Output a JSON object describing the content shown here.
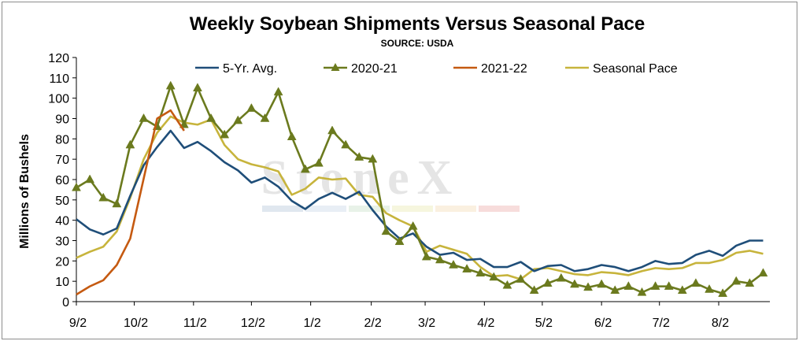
{
  "chart_data": {
    "type": "line",
    "title": "Weekly Soybean Shipments Versus Seasonal Pace",
    "subtitle": "SOURCE: USDA",
    "ylabel": "Millions of Bushels",
    "xlabel": "",
    "ylim": [
      0,
      120
    ],
    "ytick_step": 10,
    "yticks": [
      "0",
      "10",
      "20",
      "30",
      "40",
      "50",
      "60",
      "70",
      "80",
      "90",
      "100",
      "110",
      "120"
    ],
    "grid": false,
    "legend": "top",
    "watermark": "StoneX",
    "x_week_count": 52,
    "xticks": [
      {
        "label": "9/2",
        "week": 0
      },
      {
        "label": "10/2",
        "week": 4.3
      },
      {
        "label": "11/2",
        "week": 8.7
      },
      {
        "label": "12/2",
        "week": 13
      },
      {
        "label": "1/2",
        "week": 17.4
      },
      {
        "label": "2/2",
        "week": 21.9
      },
      {
        "label": "3/2",
        "week": 25.9
      },
      {
        "label": "4/2",
        "week": 30.3
      },
      {
        "label": "5/2",
        "week": 34.6
      },
      {
        "label": "6/2",
        "week": 39
      },
      {
        "label": "7/2",
        "week": 43.3
      },
      {
        "label": "8/2",
        "week": 47.7
      }
    ],
    "series": [
      {
        "name": "5-Yr. Avg.",
        "color": "#1f4e79",
        "marker": "none",
        "values": [
          40.5,
          35.5,
          33,
          36,
          52,
          67,
          76,
          84,
          75.5,
          78.5,
          74,
          68.5,
          64.5,
          58.5,
          61,
          56.5,
          49.5,
          45.5,
          50.5,
          53.5,
          50.5,
          54,
          45,
          37,
          31,
          33.5,
          27,
          23,
          24,
          20.5,
          21,
          17,
          17,
          19.5,
          15,
          17.5,
          18,
          15,
          16,
          18,
          17,
          15,
          17,
          20,
          18.5,
          19,
          23,
          25,
          22.5,
          27.5,
          30,
          30
        ]
      },
      {
        "name": "2020-21",
        "color": "#6b7a1e",
        "marker": "triangle",
        "values": [
          56,
          60,
          51,
          48,
          77,
          90,
          86,
          106,
          87,
          105,
          90,
          82,
          89,
          95,
          90,
          103,
          81,
          65,
          68,
          84,
          77,
          71,
          70,
          34.5,
          29.5,
          37,
          22,
          20.5,
          18,
          16,
          14,
          12,
          8,
          11,
          5.5,
          9,
          11.5,
          8.5,
          7,
          8.5,
          5.5,
          7.5,
          4.5,
          7.5,
          7.5,
          5.5,
          9,
          6,
          4,
          10,
          9,
          14
        ]
      },
      {
        "name": "2021-22",
        "color": "#c55a11",
        "marker": "none",
        "values": [
          3.5,
          7.5,
          10.5,
          18,
          31,
          60.5,
          90,
          94,
          84
        ]
      },
      {
        "name": "Seasonal Pace",
        "color": "#c7b43c",
        "marker": "none",
        "values": [
          21.5,
          24.5,
          27,
          34.5,
          51,
          70,
          83,
          91,
          88,
          87,
          89.5,
          77,
          70,
          67.5,
          66,
          64,
          52.5,
          55.5,
          61,
          60,
          60.5,
          52.5,
          51.5,
          43.5,
          40,
          37,
          24.5,
          27.5,
          25.5,
          23.5,
          17,
          12.5,
          13,
          11,
          16,
          16.5,
          15,
          13.5,
          13,
          14.5,
          14,
          13,
          15,
          16.5,
          16,
          16.5,
          19,
          19,
          20.5,
          24,
          25,
          23.5
        ]
      }
    ]
  }
}
